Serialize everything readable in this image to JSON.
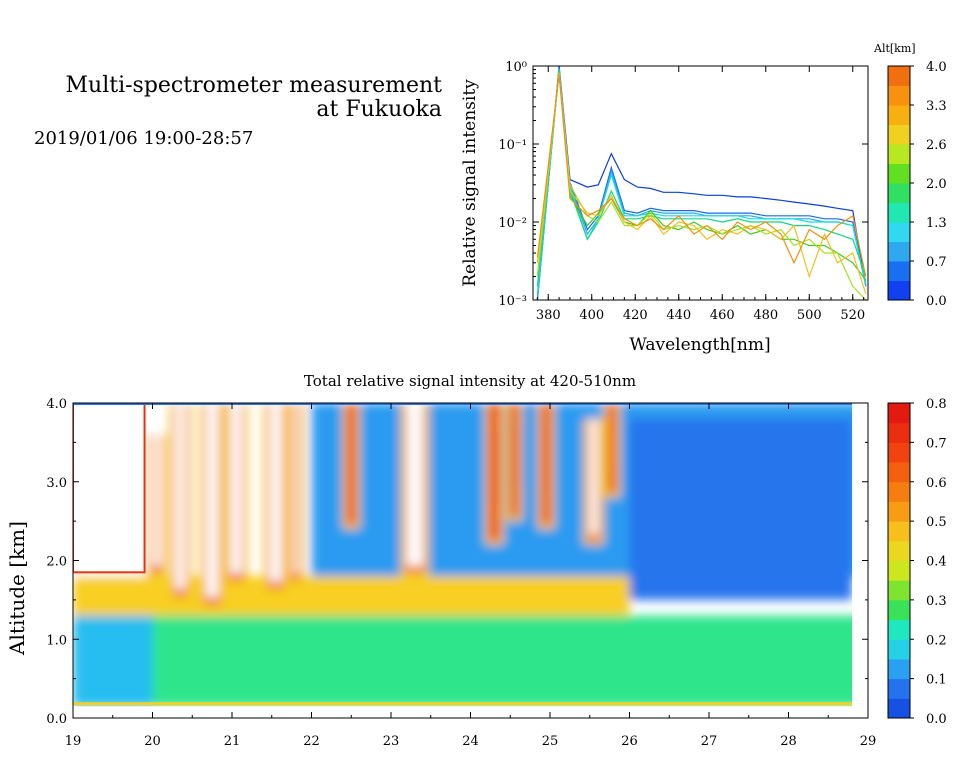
{
  "header": {
    "title_line1": "Multi-spectrometer measurement",
    "title_line2": "at Fukuoka",
    "datetime": "2019/01/06 19:00-28:57"
  },
  "chart_data": [
    {
      "type": "line",
      "title": "",
      "xlabel": "Wavelength[nm]",
      "ylabel": "Relative signal intensity",
      "xlim": [
        373,
        527
      ],
      "ylim": [
        0.001,
        1
      ],
      "yscale": "log",
      "x_ticks": [
        "380",
        "400",
        "420",
        "440",
        "460",
        "480",
        "500",
        "520"
      ],
      "y_ticks": [
        "10⁻³",
        "10⁻²",
        "10⁻¹",
        "10⁰"
      ],
      "legend": {
        "title": "Alt[km]",
        "labels": [
          "0.0",
          "0.7",
          "1.3",
          "2.0",
          "2.6",
          "3.3",
          "4.0"
        ],
        "placement": "right colorbar"
      },
      "x": [
        375,
        385,
        390,
        398,
        403,
        409,
        415,
        421,
        427,
        433,
        440,
        447,
        453,
        460,
        467,
        473,
        480,
        487,
        493,
        500,
        507,
        513,
        520,
        526
      ],
      "series": [
        {
          "color": "#0a3ed8",
          "values": [
            0.001,
            1,
            0.035,
            0.028,
            0.03,
            0.075,
            0.035,
            0.028,
            0.027,
            0.024,
            0.024,
            0.023,
            0.022,
            0.022,
            0.021,
            0.021,
            0.02,
            0.019,
            0.018,
            0.017,
            0.016,
            0.015,
            0.014,
            0.0015
          ]
        },
        {
          "color": "#1a6ae8",
          "values": [
            0.001,
            0.95,
            0.032,
            0.008,
            0.012,
            0.05,
            0.014,
            0.013,
            0.015,
            0.014,
            0.014,
            0.014,
            0.013,
            0.013,
            0.013,
            0.013,
            0.012,
            0.012,
            0.012,
            0.012,
            0.011,
            0.011,
            0.01,
            0.0016
          ]
        },
        {
          "color": "#28a8f0",
          "values": [
            0.001,
            0.93,
            0.03,
            0.007,
            0.011,
            0.045,
            0.013,
            0.012,
            0.014,
            0.013,
            0.013,
            0.013,
            0.012,
            0.012,
            0.012,
            0.012,
            0.011,
            0.011,
            0.011,
            0.011,
            0.01,
            0.01,
            0.009,
            0.0015
          ]
        },
        {
          "color": "#10e0e0",
          "values": [
            0.0012,
            0.9,
            0.028,
            0.006,
            0.011,
            0.04,
            0.012,
            0.012,
            0.013,
            0.012,
            0.012,
            0.012,
            0.012,
            0.012,
            0.012,
            0.011,
            0.011,
            0.011,
            0.011,
            0.01,
            0.01,
            0.01,
            0.009,
            0.0016
          ]
        },
        {
          "color": "#10d880",
          "values": [
            0.0015,
            0.88,
            0.025,
            0.006,
            0.01,
            0.025,
            0.011,
            0.011,
            0.012,
            0.011,
            0.011,
            0.011,
            0.011,
            0.01,
            0.011,
            0.01,
            0.01,
            0.01,
            0.009,
            0.009,
            0.008,
            0.007,
            0.006,
            0.002
          ]
        },
        {
          "color": "#40c820",
          "values": [
            0.002,
            0.85,
            0.022,
            0.009,
            0.013,
            0.02,
            0.01,
            0.009,
            0.014,
            0.009,
            0.008,
            0.01,
            0.008,
            0.007,
            0.009,
            0.007,
            0.008,
            0.006,
            0.006,
            0.005,
            0.005,
            0.004,
            0.003,
            0.0018
          ]
        },
        {
          "color": "#a8e020",
          "values": [
            0.002,
            0.82,
            0.03,
            0.012,
            0.01,
            0.018,
            0.009,
            0.009,
            0.013,
            0.008,
            0.009,
            0.008,
            0.009,
            0.007,
            0.008,
            0.009,
            0.007,
            0.008,
            0.005,
            0.006,
            0.004,
            0.004,
            0.0015,
            0.001
          ]
        },
        {
          "color": "#f0c020",
          "values": [
            0.003,
            0.8,
            0.025,
            0.013,
            0.012,
            0.022,
            0.01,
            0.008,
            0.012,
            0.007,
            0.01,
            0.009,
            0.006,
            0.008,
            0.007,
            0.009,
            0.008,
            0.006,
            0.009,
            0.002,
            0.007,
            0.003,
            0.004,
            0.0012
          ]
        },
        {
          "color": "#f09010",
          "values": [
            0.0035,
            0.78,
            0.02,
            0.012,
            0.014,
            0.02,
            0.011,
            0.009,
            0.011,
            0.008,
            0.012,
            0.007,
            0.009,
            0.006,
            0.01,
            0.008,
            0.01,
            0.007,
            0.003,
            0.008,
            0.006,
            0.009,
            0.012,
            0.002
          ]
        }
      ]
    },
    {
      "type": "heatmap",
      "title": "Total relative signal intensity at 420-510nm",
      "xlabel": "",
      "ylabel": "Altitude [km]",
      "xlim": [
        19,
        29
      ],
      "ylim": [
        0,
        4
      ],
      "x_ticks": [
        "19",
        "20",
        "21",
        "22",
        "23",
        "24",
        "25",
        "26",
        "27",
        "28",
        "29"
      ],
      "y_ticks": [
        "0.0",
        "1.0",
        "2.0",
        "3.0",
        "4.0"
      ],
      "colorbar": {
        "labels": [
          "0.0",
          "0.1",
          "0.2",
          "0.3",
          "0.4",
          "0.5",
          "0.6",
          "0.7",
          "0.8"
        ],
        "range": [
          0,
          0.8
        ]
      },
      "data_range": {
        "x": [
          19,
          28.8
        ],
        "y": [
          0.15,
          4.0
        ]
      },
      "features": [
        {
          "x_range": [
            19,
            20
          ],
          "y_range": [
            1.8,
            4.0
          ],
          "value": "above 0.8 (white)"
        },
        {
          "x_range": [
            19,
            26
          ],
          "y_range": [
            1.3,
            1.8
          ],
          "value": 0.45
        },
        {
          "x_range": [
            19,
            20
          ],
          "y_range": [
            0.15,
            1.3
          ],
          "value": 0.15
        },
        {
          "x_range": [
            20,
            29
          ],
          "y_range": [
            0.15,
            1.3
          ],
          "value": 0.25
        },
        {
          "x_range": [
            22,
            29
          ],
          "y_range": [
            1.8,
            4.0
          ],
          "value": 0.12
        },
        {
          "x_range": [
            26,
            28.8
          ],
          "y_range": [
            1.5,
            3.8
          ],
          "value": 0.08
        }
      ],
      "columns": [
        {
          "x": 20.05,
          "width": 0.1,
          "y_range": [
            1.8,
            3.6
          ],
          "value": 0.85
        },
        {
          "x": 20.35,
          "width": 0.12,
          "y_range": [
            1.5,
            4.0
          ],
          "value": 0.85
        },
        {
          "x": 20.75,
          "width": 0.15,
          "y_range": [
            1.4,
            4.0
          ],
          "value": 0.85
        },
        {
          "x": 21.05,
          "width": 0.14,
          "y_range": [
            1.7,
            4.0
          ],
          "value": 0.85
        },
        {
          "x": 21.55,
          "width": 0.15,
          "y_range": [
            1.6,
            4.0
          ],
          "value": 0.85
        },
        {
          "x": 21.8,
          "width": 0.06,
          "y_range": [
            1.7,
            4.0
          ],
          "value": 0.8
        },
        {
          "x": 23.3,
          "width": 0.2,
          "y_range": [
            1.8,
            4.0
          ],
          "value": 0.85
        },
        {
          "x": 22.5,
          "width": 0.06,
          "y_range": [
            2.4,
            4.0
          ],
          "value": 0.6
        },
        {
          "x": 24.3,
          "width": 0.08,
          "y_range": [
            2.2,
            4.0
          ],
          "value": 0.65
        },
        {
          "x": 24.55,
          "width": 0.05,
          "y_range": [
            2.5,
            4.0
          ],
          "value": 0.7
        },
        {
          "x": 24.95,
          "width": 0.06,
          "y_range": [
            2.4,
            4.0
          ],
          "value": 0.65
        },
        {
          "x": 25.55,
          "width": 0.1,
          "y_range": [
            2.2,
            3.8
          ],
          "value": 0.8
        },
        {
          "x": 25.78,
          "width": 0.05,
          "y_range": [
            2.8,
            4.0
          ],
          "value": 0.55
        }
      ]
    }
  ]
}
